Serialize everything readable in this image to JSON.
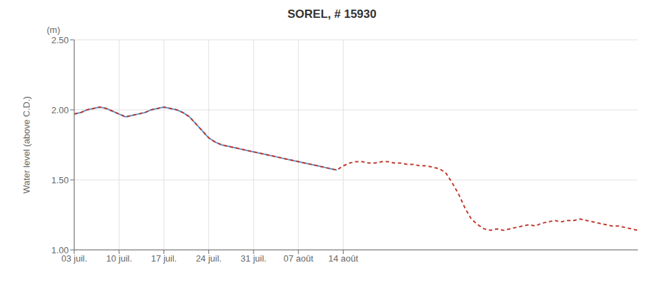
{
  "chart_data": {
    "type": "line",
    "title": "SOREL, # 15930",
    "y_label": "Water level (above C.D.)",
    "annotations": [
      "(m)"
    ],
    "xlim": [
      0,
      88
    ],
    "xticks": [
      {
        "value": 0,
        "label": "03 juil."
      },
      {
        "value": 7,
        "label": "10 juil."
      },
      {
        "value": 14,
        "label": "17 juil."
      },
      {
        "value": 21,
        "label": "24 juil."
      },
      {
        "value": 28,
        "label": "31 juil."
      },
      {
        "value": 35,
        "label": "07 août"
      },
      {
        "value": 42,
        "label": "14 août"
      }
    ],
    "ylim": [
      1.0,
      2.5
    ],
    "yticks": [
      {
        "value": 1.0,
        "label": "1.00"
      },
      {
        "value": 1.5,
        "label": "1.50"
      },
      {
        "value": 2.0,
        "label": "2.00"
      },
      {
        "value": 2.5,
        "label": "2.50"
      }
    ],
    "grid": true,
    "series": [
      {
        "color": "#5b9bd5",
        "line_style": "solid",
        "x": [
          0,
          1,
          2,
          3,
          4,
          5,
          6,
          7,
          8,
          9,
          10,
          11,
          12,
          13,
          14,
          15,
          16,
          17,
          18,
          19,
          20,
          21,
          22,
          23,
          24,
          25,
          26,
          27,
          28,
          29,
          30,
          31,
          32,
          33,
          34,
          35,
          36,
          37,
          38,
          39,
          40,
          41
        ],
        "values": [
          1.97,
          1.98,
          2.0,
          2.01,
          2.02,
          2.01,
          1.99,
          1.97,
          1.95,
          1.96,
          1.97,
          1.98,
          2.0,
          2.01,
          2.02,
          2.01,
          2.0,
          1.98,
          1.95,
          1.9,
          1.85,
          1.8,
          1.77,
          1.75,
          1.74,
          1.73,
          1.72,
          1.71,
          1.7,
          1.69,
          1.68,
          1.67,
          1.66,
          1.65,
          1.64,
          1.63,
          1.62,
          1.61,
          1.6,
          1.59,
          1.58,
          1.57
        ]
      },
      {
        "color": "#c0392b",
        "line_style": "dashed",
        "x": [
          0,
          1,
          2,
          3,
          4,
          5,
          6,
          7,
          8,
          9,
          10,
          11,
          12,
          13,
          14,
          15,
          16,
          17,
          18,
          19,
          20,
          21,
          22,
          23,
          24,
          25,
          26,
          27,
          28,
          29,
          30,
          31,
          32,
          33,
          34,
          35,
          36,
          37,
          38,
          39,
          40,
          41,
          42,
          43,
          44,
          45,
          46,
          47,
          48,
          49,
          50,
          51,
          52,
          53,
          54,
          55,
          56,
          57,
          58,
          59,
          60,
          61,
          62,
          63,
          64,
          65,
          66,
          67,
          68,
          69,
          70,
          71,
          72,
          73,
          74,
          75,
          76,
          77,
          78,
          79,
          80,
          81,
          82,
          83,
          84,
          85,
          86,
          87,
          88
        ],
        "values": [
          1.97,
          1.98,
          2.0,
          2.01,
          2.02,
          2.01,
          1.99,
          1.97,
          1.95,
          1.96,
          1.97,
          1.98,
          2.0,
          2.01,
          2.02,
          2.01,
          2.0,
          1.98,
          1.95,
          1.9,
          1.85,
          1.8,
          1.77,
          1.75,
          1.74,
          1.73,
          1.72,
          1.71,
          1.7,
          1.69,
          1.68,
          1.67,
          1.66,
          1.65,
          1.64,
          1.63,
          1.62,
          1.61,
          1.6,
          1.59,
          1.58,
          1.57,
          1.6,
          1.62,
          1.63,
          1.63,
          1.62,
          1.62,
          1.63,
          1.63,
          1.62,
          1.62,
          1.61,
          1.61,
          1.6,
          1.6,
          1.59,
          1.58,
          1.55,
          1.48,
          1.4,
          1.3,
          1.22,
          1.18,
          1.15,
          1.14,
          1.15,
          1.14,
          1.15,
          1.16,
          1.17,
          1.18,
          1.17,
          1.19,
          1.2,
          1.21,
          1.2,
          1.21,
          1.21,
          1.22,
          1.21,
          1.2,
          1.19,
          1.18,
          1.17,
          1.17,
          1.16,
          1.15,
          1.14
        ]
      }
    ]
  }
}
